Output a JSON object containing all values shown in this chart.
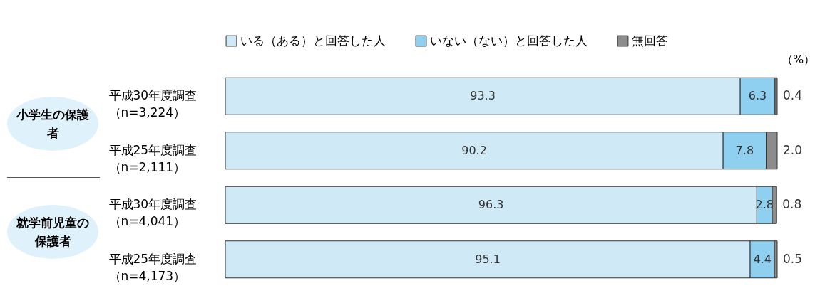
{
  "chart_data": {
    "type": "bar",
    "orientation": "horizontal",
    "stacked": true,
    "legend": "top",
    "tick_labels": "y",
    "categories": [
      "平成30年度調査（n=3,224）",
      "平成25年度調査（n=2,111）",
      "平成30年度調査（n=4,041）",
      "平成25年度調査（n=4,173）"
    ],
    "series": [
      {
        "name": "いる（ある）と回答した人",
        "color": "#cfe9f7",
        "values": [
          93.3,
          90.2,
          96.3,
          95.1
        ],
        "value_labels": [
          "93.3",
          "90.2",
          "96.3",
          "95.1"
        ]
      },
      {
        "name": "いない（ない）と回答した人",
        "color": "#8fd0f0",
        "values": [
          6.3,
          7.8,
          2.8,
          4.4
        ],
        "value_labels": [
          "6.3",
          "7.8",
          "2.8",
          "4.4"
        ]
      },
      {
        "name": "無回答",
        "color": "#8c8c8c",
        "values": [
          0.4,
          2.0,
          0.8,
          0.5
        ],
        "value_labels": [
          "0.4",
          "2.0",
          "0.8",
          "0.5"
        ]
      }
    ],
    "annotations": [
      "小学生の保護者",
      "就学前児童の保護者",
      "（%）"
    ]
  }
}
